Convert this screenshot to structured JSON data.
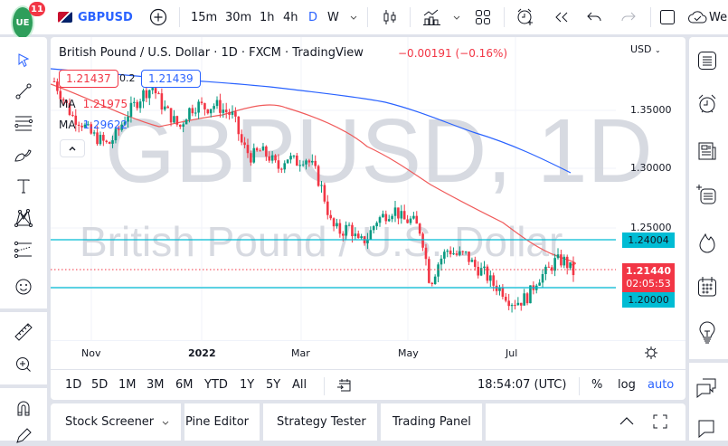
{
  "topbar": {
    "logo_text": "UE",
    "notification_count": "11",
    "symbol": "GBPUSD",
    "timeframes": [
      "15m",
      "30m",
      "1h",
      "4h",
      "D",
      "W"
    ],
    "active_timeframe": "D",
    "cloud_label": "We"
  },
  "legend": {
    "title": "British Pound / U.S. Dollar · 1D · FXCM · TradingView",
    "change": "−0.00191 (−0.16%)",
    "bid": "1.21437",
    "spread": "0.2",
    "ask": "1.21439",
    "ma1_label": "MA",
    "ma1_value": "1.21975",
    "ma2_label": "MA",
    "ma2_value": "1.29622"
  },
  "watermark": {
    "line1": "GBPUSD, 1D",
    "line2": "British Pound / U.S. Dollar"
  },
  "price_axis": {
    "currency": "USD",
    "ticks": [
      "1.35000",
      "1.30000",
      "1.25000"
    ],
    "level_upper": "1.24004",
    "level_lower": "1.20000",
    "last_price": "1.21440",
    "countdown": "02:05:53"
  },
  "time_axis": {
    "labels": [
      "Nov",
      "2022",
      "Mar",
      "May",
      "Jul"
    ]
  },
  "range_bar": {
    "ranges": [
      "1D",
      "5D",
      "1M",
      "3M",
      "6M",
      "YTD",
      "1Y",
      "5Y",
      "All"
    ],
    "clock": "18:54:07 (UTC)",
    "percent": "%",
    "log": "log",
    "auto": "auto"
  },
  "bottom_tabs": [
    "Stock Screener",
    "Pine Editor",
    "Strategy Tester",
    "Trading Panel"
  ],
  "colors": {
    "up": "#089981",
    "down": "#f23645",
    "ma_fast": "#f05a5a",
    "ma_slow": "#2962ff",
    "level": "#00bcd4",
    "accent": "#2962ff"
  },
  "chart_data": {
    "type": "candlestick",
    "title": "British Pound / U.S. Dollar · 1D · FXCM",
    "symbol": "GBPUSD",
    "x_labels": [
      "Nov",
      "2022",
      "Mar",
      "May",
      "Jul"
    ],
    "y_ticks": [
      1.35,
      1.3,
      1.25
    ],
    "ylim": [
      1.17,
      1.4
    ],
    "horizontal_levels": [
      1.24004,
      1.2
    ],
    "last_price": 1.2144,
    "series": [
      {
        "name": "MA (fast)",
        "last": 1.21975
      },
      {
        "name": "MA (slow)",
        "last": 1.29622
      }
    ],
    "approx_closes": [
      1.375,
      1.36,
      1.345,
      1.34,
      1.33,
      1.325,
      1.32,
      1.33,
      1.345,
      1.355,
      1.365,
      1.37,
      1.355,
      1.345,
      1.335,
      1.35,
      1.355,
      1.352,
      1.355,
      1.35,
      1.345,
      1.32,
      1.31,
      1.315,
      1.31,
      1.3,
      1.31,
      1.305,
      1.31,
      1.3,
      1.28,
      1.25,
      1.245,
      1.25,
      1.235,
      1.24,
      1.255,
      1.26,
      1.265,
      1.255,
      1.255,
      1.245,
      1.2,
      1.22,
      1.23,
      1.225,
      1.225,
      1.215,
      1.21,
      1.2,
      1.195,
      1.185,
      1.185,
      1.19,
      1.205,
      1.21,
      1.22,
      1.22,
      1.21
    ]
  }
}
